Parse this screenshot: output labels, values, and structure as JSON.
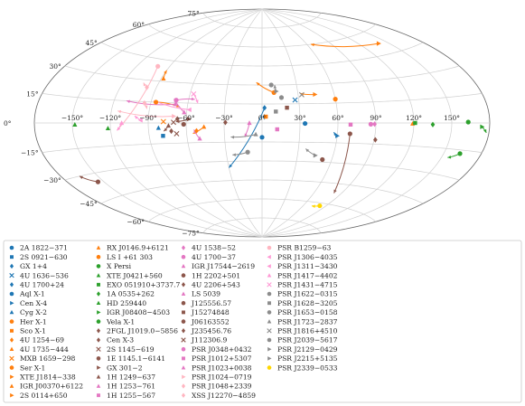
{
  "chart_data": {
    "type": "scatter",
    "projection": "aitoff",
    "grid": true,
    "legend_location": "bottom",
    "lat_ticks": [
      {
        "label": "75°",
        "lat": 75
      },
      {
        "label": "60°",
        "lat": 60
      },
      {
        "label": "45°",
        "lat": 45
      },
      {
        "label": "30°",
        "lat": 30
      },
      {
        "label": "15°",
        "lat": 15
      },
      {
        "label": "0°",
        "lat": 0
      },
      {
        "label": "−15°",
        "lat": -15
      },
      {
        "label": "−30°",
        "lat": -30
      },
      {
        "label": "−45°",
        "lat": -45
      },
      {
        "label": "−60°",
        "lat": -60
      },
      {
        "label": "−75°",
        "lat": -75
      }
    ],
    "lon_ticks": [
      {
        "label": "150°",
        "lon": 150
      },
      {
        "label": "120°",
        "lon": 120
      },
      {
        "label": "90°",
        "lon": 90
      },
      {
        "label": "60°",
        "lon": 60
      },
      {
        "label": "30°",
        "lon": 30
      },
      {
        "label": "0°",
        "lon": 0
      },
      {
        "label": "−30°",
        "lon": -30
      },
      {
        "label": "−60°",
        "lon": -60
      },
      {
        "label": "−90°",
        "lon": -90
      },
      {
        "label": "−120°",
        "lon": -120
      },
      {
        "label": "−150°",
        "lon": -150
      }
    ],
    "series": [
      {
        "name": "2A 1822−371",
        "color": "#1f77b4",
        "marker": "circle",
        "lon": 0,
        "lat": -11.3,
        "to": null
      },
      {
        "name": "2S 0921−630",
        "color": "#1f77b4",
        "marker": "square",
        "lon": -79,
        "lat": -9.4,
        "to": null
      },
      {
        "name": "GX 1+4",
        "color": "#1f77b4",
        "marker": "diamond",
        "lon": 1.9,
        "lat": 4.8,
        "to": null
      },
      {
        "name": "4U 1636−536",
        "color": "#1f77b4",
        "marker": "x",
        "lon": 27,
        "lat": 18,
        "to": null
      },
      {
        "name": "4U 1700+24",
        "color": "#1f77b4",
        "marker": "diamond",
        "lon": 2,
        "lat": 12,
        "to": [
          -30,
          -35
        ]
      },
      {
        "name": "Aql X-1",
        "color": "#1f77b4",
        "marker": "circle",
        "lon": 34,
        "lat": -0.4,
        "to": null
      },
      {
        "name": "Cen X-4",
        "color": "#1f77b4",
        "marker": "triangle-right",
        "lon": 60,
        "lat": -9.7,
        "to": [
          57,
          -7
        ]
      },
      {
        "name": "Cyg X-2",
        "color": "#1f77b4",
        "marker": "triangle-up",
        "lon": -82,
        "lat": -3.6,
        "to": null
      },
      {
        "name": "Her X-1",
        "color": "#ff7f0e",
        "marker": "circle",
        "lon": 60,
        "lat": 18,
        "to": null
      },
      {
        "name": "Sco X-1",
        "color": "#ff7f0e",
        "marker": "square",
        "lon": 3,
        "lat": 5,
        "to": null
      },
      {
        "name": "4U 1254−69",
        "color": "#ff7f0e",
        "marker": "diamond",
        "lon": -52,
        "lat": -6,
        "to": null
      },
      {
        "name": "4U 1735−444",
        "color": "#ff7f0e",
        "marker": "triangle-up",
        "lon": 119,
        "lat": -0.5,
        "to": null
      },
      {
        "name": "MXB 1659−298",
        "color": "#ff7f0e",
        "marker": "x",
        "lon": -78,
        "lat": 1,
        "to": null
      },
      {
        "name": "Ser X-1",
        "color": "#ff7f0e",
        "marker": "circle",
        "lon": 10,
        "lat": 24,
        "to": [
          -5,
          32
        ]
      },
      {
        "name": "XTE J1814−338",
        "color": "#ff7f0e",
        "marker": "triangle-right",
        "lon": 44,
        "lat": 22,
        "to": [
          32,
          23
        ]
      },
      {
        "name": "IGR J00370+6122",
        "color": "#ff7f0e",
        "marker": "triangle-up",
        "lon": -46,
        "lat": -3,
        "to": [
          -55,
          -8
        ]
      },
      {
        "name": "2S 0114+650",
        "color": "#ff7f0e",
        "marker": "triangle-right",
        "lon": 140,
        "lat": 52,
        "to": [
          65,
          60
        ]
      },
      {
        "name": "RX J0146.9+6121",
        "color": "#ff7f0e",
        "marker": "triangle-up",
        "lon": -88,
        "lat": 32,
        "to": [
          -90,
          38
        ]
      },
      {
        "name": "LS I +61 303",
        "color": "#ff7f0e",
        "marker": "circle",
        "lon": -86,
        "lat": 15,
        "to": [
          -66,
          12
        ]
      },
      {
        "name": "X Persi",
        "color": "#2ca02c",
        "marker": "circle",
        "lon": 163,
        "lat": 0.5,
        "to": null
      },
      {
        "name": "XTE J0421+560",
        "color": "#2ca02c",
        "marker": "triangle-up",
        "lon": -122,
        "lat": -3.5,
        "to": null
      },
      {
        "name": "EXO 051910+3737.7",
        "color": "#2ca02c",
        "marker": "square",
        "lon": 121,
        "lat": 0,
        "to": null
      },
      {
        "name": "1A 0535+262",
        "color": "#2ca02c",
        "marker": "diamond",
        "lon": 135,
        "lat": -1,
        "to": null
      },
      {
        "name": "HD 259440",
        "color": "#2ca02c",
        "marker": "triangle-up",
        "lon": -148,
        "lat": -1,
        "to": null
      },
      {
        "name": "IGR J08408−4503",
        "color": "#2ca02c",
        "marker": "triangle-right",
        "lon": 174,
        "lat": -2,
        "to": [
          178,
          -5
        ]
      },
      {
        "name": "Vela X-1",
        "color": "#2ca02c",
        "marker": "circle",
        "lon": 163,
        "lat": -17,
        "to": [
          155,
          -20
        ]
      },
      {
        "name": "2FGL J1019.0−5856",
        "color": "#8c564b",
        "marker": "diamond",
        "lon": -29,
        "lat": 0.4,
        "to": null
      },
      {
        "name": "Cen X-3",
        "color": "#8c564b",
        "marker": "diamond",
        "lon": -67,
        "lat": 3,
        "to": null
      },
      {
        "name": "2S 1145−619",
        "color": "#8c564b",
        "marker": "x",
        "lon": -70,
        "lat": 0.5,
        "to": null
      },
      {
        "name": "1E 1145.1−6141",
        "color": "#8c564b",
        "marker": "circle",
        "lon": -62,
        "lat": -1,
        "to": null
      },
      {
        "name": "GX 301−2",
        "color": "#8c564b",
        "marker": "triangle-right",
        "lon": -58,
        "lat": 3,
        "to": [
          -68,
          1
        ]
      },
      {
        "name": "1H 1249−637",
        "color": "#8c564b",
        "marker": "triangle-up",
        "lon": -74,
        "lat": -2,
        "to": [
          -78,
          -6
        ]
      },
      {
        "name": "1H 1253−761",
        "color": "#e377c2",
        "marker": "triangle-up",
        "lon": -50,
        "lat": -12,
        "to": [
          -54,
          -5
        ]
      },
      {
        "name": "1H 1255−567",
        "color": "#e377c2",
        "marker": "square",
        "lon": 70,
        "lat": -1.2,
        "to": null
      },
      {
        "name": "4U 1538−52",
        "color": "#e377c2",
        "marker": "diamond",
        "lon": 89,
        "lat": -0.8,
        "to": null
      },
      {
        "name": "4U 1700−37",
        "color": "#e377c2",
        "marker": "circle",
        "lon": 86,
        "lat": -0.9,
        "to": null
      },
      {
        "name": "IGR J17544−2619",
        "color": "#e377c2",
        "marker": "triangle-up",
        "lon": -10,
        "lat": 0,
        "to": [
          -14,
          -11
        ]
      },
      {
        "name": "1H 2202+501",
        "color": "#8c564b",
        "marker": "circle",
        "lon": 70,
        "lat": -8,
        "to": [
          82,
          -52
        ]
      },
      {
        "name": "4U 2206+543",
        "color": "#8c564b",
        "marker": "diamond",
        "lon": 91,
        "lat": -12,
        "to": null
      },
      {
        "name": "LS 5039",
        "color": "#e377c2",
        "marker": "triangle-up",
        "lon": -62,
        "lat": 8,
        "to": [
          -72,
          18
        ]
      },
      {
        "name": "J125556.57",
        "color": "#8c564b",
        "marker": "circle",
        "lon": 52,
        "lat": -28,
        "to": null
      },
      {
        "name": "J15274848",
        "color": "#8c564b",
        "marker": "square",
        "lon": 20,
        "lat": 12,
        "to": null
      },
      {
        "name": "J06163552",
        "color": "#8c564b",
        "marker": "circle",
        "lon": -155,
        "lat": -35,
        "to": [
          -165,
          -30
        ]
      },
      {
        "name": "J235456.76",
        "color": "#8c564b",
        "marker": "diamond",
        "lon": -72,
        "lat": -6,
        "to": null
      },
      {
        "name": "J112306.9",
        "color": "#8c564b",
        "marker": "x",
        "lon": -68,
        "lat": -8,
        "to": null
      },
      {
        "name": "PSR J0348+0432",
        "color": "#e377c2",
        "marker": "circle",
        "lon": -70,
        "lat": 17,
        "to": [
          -55,
          18
        ]
      },
      {
        "name": "PSR J1012+5307",
        "color": "#e377c2",
        "marker": "square",
        "lon": 12,
        "lat": -5,
        "to": null
      },
      {
        "name": "PSR J1023+0038",
        "color": "#e377c2",
        "marker": "triangle-up",
        "lon": -70,
        "lat": 14,
        "to": [
          -110,
          15
        ]
      },
      {
        "name": "PSR J1024−0719",
        "color": "#ffb6c1",
        "marker": "triangle-right",
        "lon": -70,
        "lat": 5,
        "to": [
          -115,
          8
        ]
      },
      {
        "name": "PSR J1048+2339",
        "color": "#ffb6c1",
        "marker": "diamond",
        "lon": -95,
        "lat": 14,
        "to": [
          -92,
          10
        ]
      },
      {
        "name": "XSS J12270−4859",
        "color": "#ffb6c1",
        "marker": "diamond",
        "lon": -98,
        "lat": 25,
        "to": [
          -103,
          28
        ]
      },
      {
        "name": "PSR B1259−63",
        "color": "#ffb6c1",
        "marker": "circle",
        "lon": -101,
        "lat": 40,
        "to": [
          -115,
          -5
        ]
      },
      {
        "name": "PSR J1306−4035",
        "color": "#ff9ad5",
        "marker": "triangle-left",
        "lon": -58,
        "lat": 10,
        "to": [
          -88,
          16
        ]
      },
      {
        "name": "PSR J1311−3430",
        "color": "#ff9ad5",
        "marker": "triangle-left",
        "lon": -96,
        "lat": 2,
        "to": [
          -101,
          5
        ]
      },
      {
        "name": "PSR J1417−4402",
        "color": "#ff9ad5",
        "marker": "triangle-up",
        "lon": -111,
        "lat": 0,
        "to": [
          -115,
          -5
        ]
      },
      {
        "name": "PSR J1431−4715",
        "color": "#ff9ad5",
        "marker": "x",
        "lon": -57,
        "lat": 22,
        "to": [
          -52,
          15
        ]
      },
      {
        "name": "PSR J1622−0315",
        "color": "#8c8c8c",
        "marker": "circle",
        "lon": 8,
        "lat": 30,
        "to": null
      },
      {
        "name": "PSR J1628−3205",
        "color": "#8c8c8c",
        "marker": "square",
        "lon": 11,
        "lat": 9,
        "to": null
      },
      {
        "name": "PSR J1653−0158",
        "color": "#8c8c8c",
        "marker": "circle",
        "lon": 16,
        "lat": 20,
        "to": null
      },
      {
        "name": "PSR J1723−2837",
        "color": "#8c8c8c",
        "marker": "triangle-up",
        "lon": -5,
        "lat": -9,
        "to": [
          -25,
          -11
        ]
      },
      {
        "name": "PSR J1816+4510",
        "color": "#8c8c8c",
        "marker": "x",
        "lon": 33,
        "lat": 22,
        "to": null
      },
      {
        "name": "PSR J2039−5617",
        "color": "#8c8c8c",
        "marker": "circle",
        "lon": -12,
        "lat": -23,
        "to": [
          -25,
          -25
        ]
      },
      {
        "name": "PSR J2129−0429",
        "color": "#8c8c8c",
        "marker": "triangle-right",
        "lon": 12,
        "lat": 25,
        "to": [
          11,
          30
        ]
      },
      {
        "name": "PSR J2215+5135",
        "color": "#8c8c8c",
        "marker": "triangle-right",
        "lon": 45,
        "lat": -25,
        "to": [
          36,
          -20
        ]
      },
      {
        "name": "PSR J2339−0533",
        "color": "#ffd700",
        "marker": "circle",
        "lon": 82,
        "lat": -62,
        "to": [
          72,
          -63
        ]
      }
    ]
  }
}
